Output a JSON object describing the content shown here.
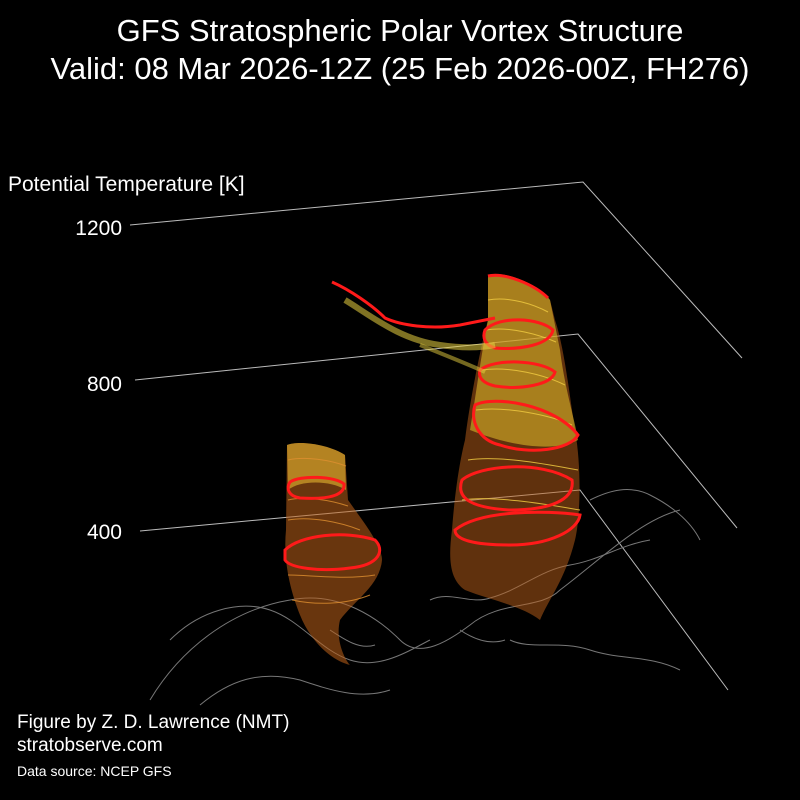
{
  "figure": {
    "title_line1": "GFS Stratospheric Polar Vortex Structure",
    "title_line2": "Valid: 08 Mar 2026-12Z  (25 Feb 2026-00Z, FH276)",
    "credit_line1": "Figure by Z. D. Lawrence (NMT)",
    "credit_line2": "stratobserve.com",
    "source": "Data source: NCEP GFS"
  },
  "chart_data": {
    "type": "other",
    "title": "GFS Stratospheric Polar Vortex Structure",
    "subtitle": "Valid: 08 Mar 2026-12Z  (25 Feb 2026-00Z, FH276)",
    "zlabel": "Potential Temperature [K]",
    "z_ticks": [
      400,
      800,
      1200
    ],
    "z_tick_labels": [
      "400",
      "800",
      "1200"
    ],
    "zlim": [
      400,
      1200
    ],
    "grid": true,
    "colors": {
      "background": "#000000",
      "gridline": "#bbbbbb",
      "coastline": "#777777",
      "low_level": "#d2691e",
      "mid_level": "#e0a030",
      "upper_level": "#e8e040",
      "highlight": "#ff1a1a"
    },
    "structures": [
      {
        "name": "",
        "description_levels": [
          400,
          700
        ]
      },
      {
        "name": "",
        "description_levels": [
          400,
          1150
        ]
      }
    ]
  }
}
